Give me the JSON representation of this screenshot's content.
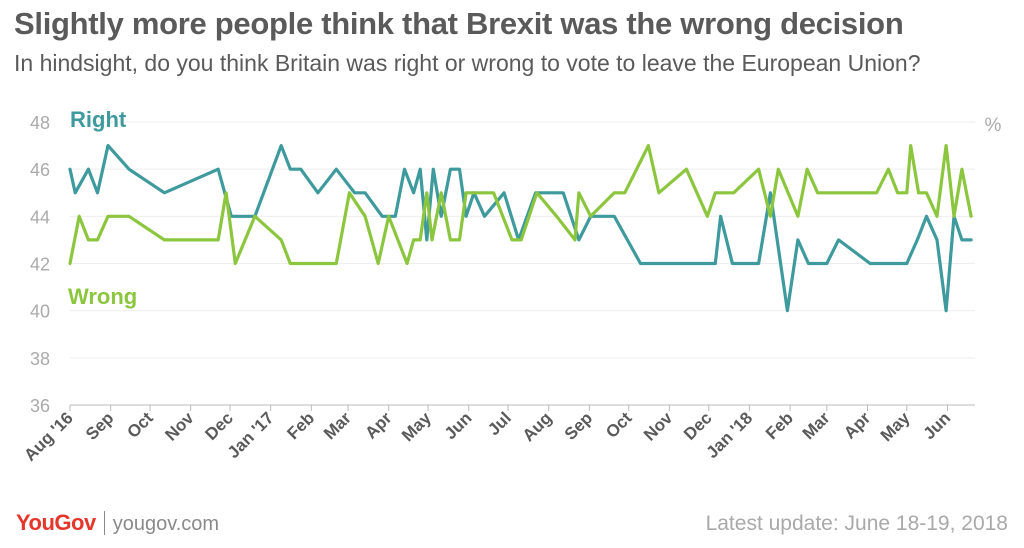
{
  "header": {
    "title": "Slightly more people think that Brexit was the wrong decision",
    "subtitle": "In hindsight, do you think Britain was right or wrong to vote to leave the European Union?"
  },
  "footer": {
    "logo": "YouGov",
    "site": "yougov.com",
    "update": "Latest update: June 18-19, 2018"
  },
  "colors": {
    "right": "#3e9a9c",
    "wrong": "#8cc63f",
    "grid": "#eeeeee",
    "text": "#5a5a5a",
    "tick": "#aaaaaa"
  },
  "chart_data": {
    "type": "line",
    "title": "Slightly more people think that Brexit was the wrong decision",
    "ylabel": "%",
    "ylim": [
      36,
      48
    ],
    "yticks": [
      36,
      38,
      40,
      42,
      44,
      46,
      48
    ],
    "x_range": [
      "2016-08-01",
      "2018-06-22"
    ],
    "x_ticks": [
      {
        "label": "Aug '16",
        "date": "2016-08-01"
      },
      {
        "label": "Sep",
        "date": "2016-09-01"
      },
      {
        "label": "Oct",
        "date": "2016-10-01"
      },
      {
        "label": "Nov",
        "date": "2016-11-01"
      },
      {
        "label": "Dec",
        "date": "2016-12-01"
      },
      {
        "label": "Jan '17",
        "date": "2017-01-01"
      },
      {
        "label": "Feb",
        "date": "2017-02-01"
      },
      {
        "label": "Mar",
        "date": "2017-03-01"
      },
      {
        "label": "Apr",
        "date": "2017-04-01"
      },
      {
        "label": "May",
        "date": "2017-05-01"
      },
      {
        "label": "Jun",
        "date": "2017-06-01"
      },
      {
        "label": "Jul",
        "date": "2017-07-01"
      },
      {
        "label": "Aug",
        "date": "2017-08-01"
      },
      {
        "label": "Sep",
        "date": "2017-09-01"
      },
      {
        "label": "Oct",
        "date": "2017-10-01"
      },
      {
        "label": "Nov",
        "date": "2017-11-01"
      },
      {
        "label": "Dec",
        "date": "2017-12-01"
      },
      {
        "label": "Jan '18",
        "date": "2018-01-01"
      },
      {
        "label": "Feb",
        "date": "2018-02-01"
      },
      {
        "label": "Mar",
        "date": "2018-03-01"
      },
      {
        "label": "Apr",
        "date": "2018-04-01"
      },
      {
        "label": "May",
        "date": "2018-05-01"
      },
      {
        "label": "Jun",
        "date": "2018-06-01"
      }
    ],
    "series": [
      {
        "name": "Right",
        "color": "#3e9a9c",
        "points": [
          [
            "2016-08-01",
            46
          ],
          [
            "2016-08-05",
            45
          ],
          [
            "2016-08-15",
            46
          ],
          [
            "2016-08-22",
            45
          ],
          [
            "2016-08-30",
            47
          ],
          [
            "2016-09-15",
            46
          ],
          [
            "2016-10-12",
            45
          ],
          [
            "2016-11-22",
            46
          ],
          [
            "2016-12-02",
            44
          ],
          [
            "2016-12-20",
            44
          ],
          [
            "2017-01-09",
            47
          ],
          [
            "2017-01-16",
            46
          ],
          [
            "2017-01-24",
            46
          ],
          [
            "2017-02-06",
            45
          ],
          [
            "2017-02-20",
            46
          ],
          [
            "2017-03-06",
            45
          ],
          [
            "2017-03-14",
            45
          ],
          [
            "2017-03-27",
            44
          ],
          [
            "2017-04-06",
            44
          ],
          [
            "2017-04-13",
            46
          ],
          [
            "2017-04-20",
            45
          ],
          [
            "2017-04-25",
            46
          ],
          [
            "2017-04-30",
            43
          ],
          [
            "2017-05-05",
            46
          ],
          [
            "2017-05-11",
            44
          ],
          [
            "2017-05-18",
            46
          ],
          [
            "2017-05-25",
            46
          ],
          [
            "2017-05-30",
            44
          ],
          [
            "2017-06-05",
            45
          ],
          [
            "2017-06-13",
            44
          ],
          [
            "2017-06-28",
            45
          ],
          [
            "2017-07-09",
            43
          ],
          [
            "2017-07-22",
            45
          ],
          [
            "2017-08-07",
            45
          ],
          [
            "2017-08-12",
            45
          ],
          [
            "2017-08-24",
            43
          ],
          [
            "2017-09-02",
            44
          ],
          [
            "2017-09-20",
            44
          ],
          [
            "2017-10-10",
            42
          ],
          [
            "2017-11-01",
            42
          ],
          [
            "2017-11-28",
            42
          ],
          [
            "2017-12-06",
            42
          ],
          [
            "2017-12-10",
            44
          ],
          [
            "2017-12-19",
            42
          ],
          [
            "2018-01-08",
            42
          ],
          [
            "2018-01-17",
            45
          ],
          [
            "2018-01-30",
            40
          ],
          [
            "2018-02-07",
            43
          ],
          [
            "2018-02-15",
            42
          ],
          [
            "2018-03-01",
            42
          ],
          [
            "2018-03-10",
            43
          ],
          [
            "2018-04-03",
            42
          ],
          [
            "2018-05-01",
            42
          ],
          [
            "2018-05-09",
            43
          ],
          [
            "2018-05-16",
            44
          ],
          [
            "2018-05-24",
            43
          ],
          [
            "2018-05-31",
            40
          ],
          [
            "2018-06-06",
            44
          ],
          [
            "2018-06-12",
            43
          ],
          [
            "2018-06-19",
            43
          ]
        ]
      },
      {
        "name": "Wrong",
        "color": "#8cc63f",
        "points": [
          [
            "2016-08-01",
            42
          ],
          [
            "2016-08-08",
            44
          ],
          [
            "2016-08-15",
            43
          ],
          [
            "2016-08-22",
            43
          ],
          [
            "2016-08-30",
            44
          ],
          [
            "2016-09-15",
            44
          ],
          [
            "2016-10-12",
            43
          ],
          [
            "2016-11-22",
            43
          ],
          [
            "2016-11-28",
            45
          ],
          [
            "2016-12-05",
            42
          ],
          [
            "2016-12-20",
            44
          ],
          [
            "2017-01-09",
            43
          ],
          [
            "2017-01-16",
            42
          ],
          [
            "2017-02-20",
            42
          ],
          [
            "2017-03-02",
            45
          ],
          [
            "2017-03-14",
            44
          ],
          [
            "2017-03-24",
            42
          ],
          [
            "2017-04-01",
            44
          ],
          [
            "2017-04-08",
            43
          ],
          [
            "2017-04-15",
            42
          ],
          [
            "2017-04-20",
            43
          ],
          [
            "2017-04-25",
            43
          ],
          [
            "2017-04-30",
            45
          ],
          [
            "2017-05-04",
            43
          ],
          [
            "2017-05-11",
            45
          ],
          [
            "2017-05-18",
            43
          ],
          [
            "2017-05-25",
            43
          ],
          [
            "2017-05-30",
            45
          ],
          [
            "2017-06-13",
            45
          ],
          [
            "2017-06-20",
            45
          ],
          [
            "2017-07-04",
            43
          ],
          [
            "2017-07-11",
            43
          ],
          [
            "2017-07-23",
            45
          ],
          [
            "2017-08-07",
            44
          ],
          [
            "2017-08-21",
            43
          ],
          [
            "2017-08-24",
            45
          ],
          [
            "2017-09-02",
            44
          ],
          [
            "2017-09-20",
            45
          ],
          [
            "2017-09-28",
            45
          ],
          [
            "2017-10-16",
            47
          ],
          [
            "2017-10-24",
            45
          ],
          [
            "2017-11-14",
            46
          ],
          [
            "2017-11-30",
            44
          ],
          [
            "2017-12-06",
            45
          ],
          [
            "2017-12-20",
            45
          ],
          [
            "2018-01-08",
            46
          ],
          [
            "2018-01-17",
            44
          ],
          [
            "2018-01-23",
            46
          ],
          [
            "2018-02-07",
            44
          ],
          [
            "2018-02-14",
            46
          ],
          [
            "2018-02-22",
            45
          ],
          [
            "2018-03-06",
            45
          ],
          [
            "2018-04-08",
            45
          ],
          [
            "2018-04-17",
            46
          ],
          [
            "2018-04-24",
            45
          ],
          [
            "2018-05-01",
            45
          ],
          [
            "2018-05-04",
            47
          ],
          [
            "2018-05-10",
            45
          ],
          [
            "2018-05-16",
            45
          ],
          [
            "2018-05-24",
            44
          ],
          [
            "2018-05-31",
            47
          ],
          [
            "2018-06-06",
            44
          ],
          [
            "2018-06-12",
            46
          ],
          [
            "2018-06-19",
            44
          ]
        ]
      }
    ],
    "annotations": [
      {
        "text": "Right",
        "series": "Right"
      },
      {
        "text": "Wrong",
        "series": "Wrong"
      }
    ]
  }
}
